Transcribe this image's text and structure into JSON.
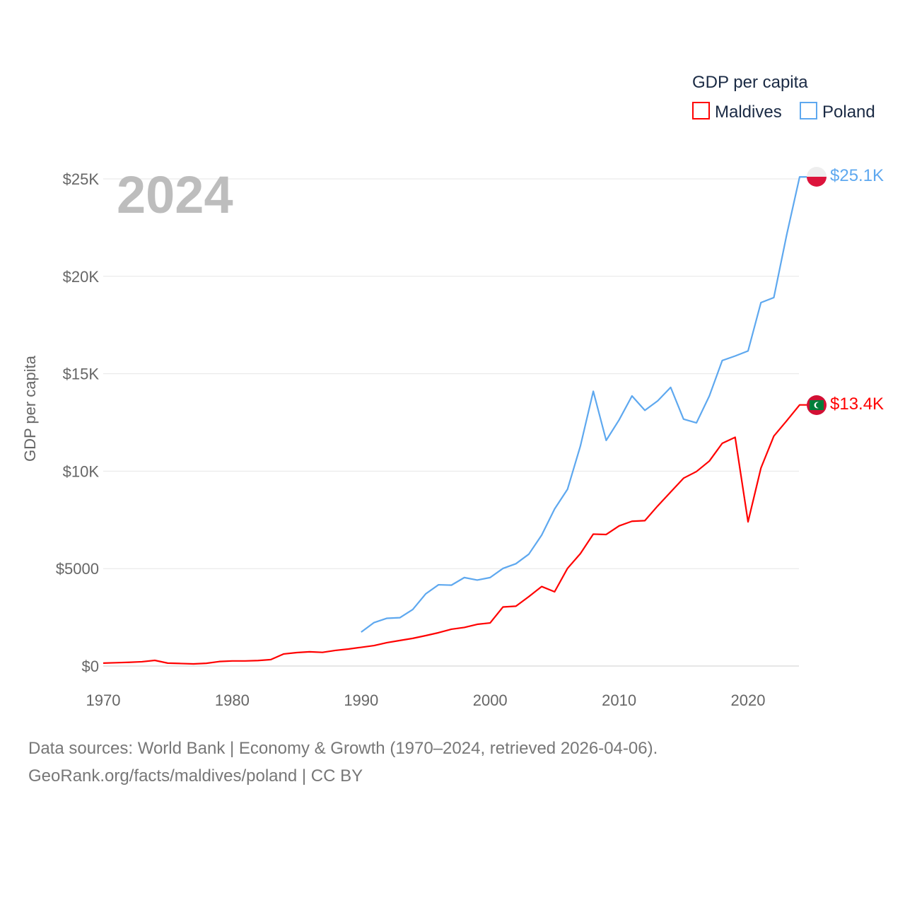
{
  "chart_data": {
    "type": "line",
    "year_label": "2024",
    "ylabel": "GDP per capita",
    "legend_title": "GDP per capita",
    "legend_position": "top-right",
    "xlim": [
      1970,
      2024
    ],
    "ylim": [
      0,
      25000
    ],
    "x_ticks": [
      "1970",
      "1980",
      "1990",
      "2000",
      "2010",
      "2020"
    ],
    "y_ticks": [
      {
        "value": 0,
        "label": "$0"
      },
      {
        "value": 5000,
        "label": "$5000"
      },
      {
        "value": 10000,
        "label": "$10K"
      },
      {
        "value": 15000,
        "label": "$15K"
      },
      {
        "value": 20000,
        "label": "$20K"
      },
      {
        "value": 25000,
        "label": "$25K"
      }
    ],
    "grid": true,
    "series": [
      {
        "name": "Maldives",
        "color": "#ff0000",
        "end_label": "$13.4K",
        "start_year": 1970,
        "values": [
          150,
          170,
          190,
          220,
          290,
          150,
          130,
          110,
          140,
          230,
          260,
          260,
          280,
          330,
          620,
          690,
          730,
          700,
          800,
          870,
          960,
          1050,
          1200,
          1310,
          1420,
          1560,
          1710,
          1890,
          1980,
          2140,
          2210,
          3030,
          3070,
          3560,
          4080,
          3810,
          5010,
          5770,
          6770,
          6750,
          7190,
          7430,
          7460,
          8220,
          8930,
          9640,
          9980,
          10520,
          11430,
          11740,
          7400,
          10160,
          11800,
          12590,
          13400
        ]
      },
      {
        "name": "Poland",
        "color": "#5ea8ef",
        "end_label": "$25.1K",
        "start_year": 1990,
        "values": [
          1740,
          2230,
          2450,
          2480,
          2900,
          3700,
          4170,
          4150,
          4540,
          4410,
          4540,
          5010,
          5250,
          5740,
          6720,
          8060,
          9070,
          11290,
          14100,
          11580,
          12630,
          13860,
          13120,
          13610,
          14300,
          12670,
          12480,
          13860,
          15680,
          15910,
          16170,
          18650,
          18910,
          22140,
          25100
        ]
      }
    ]
  },
  "footer": {
    "line1": "Data sources: World Bank | Economy & Growth (1970–2024, retrieved 2026-04-06).",
    "line2": "GeoRank.org/facts/maldives/poland | CC BY"
  }
}
